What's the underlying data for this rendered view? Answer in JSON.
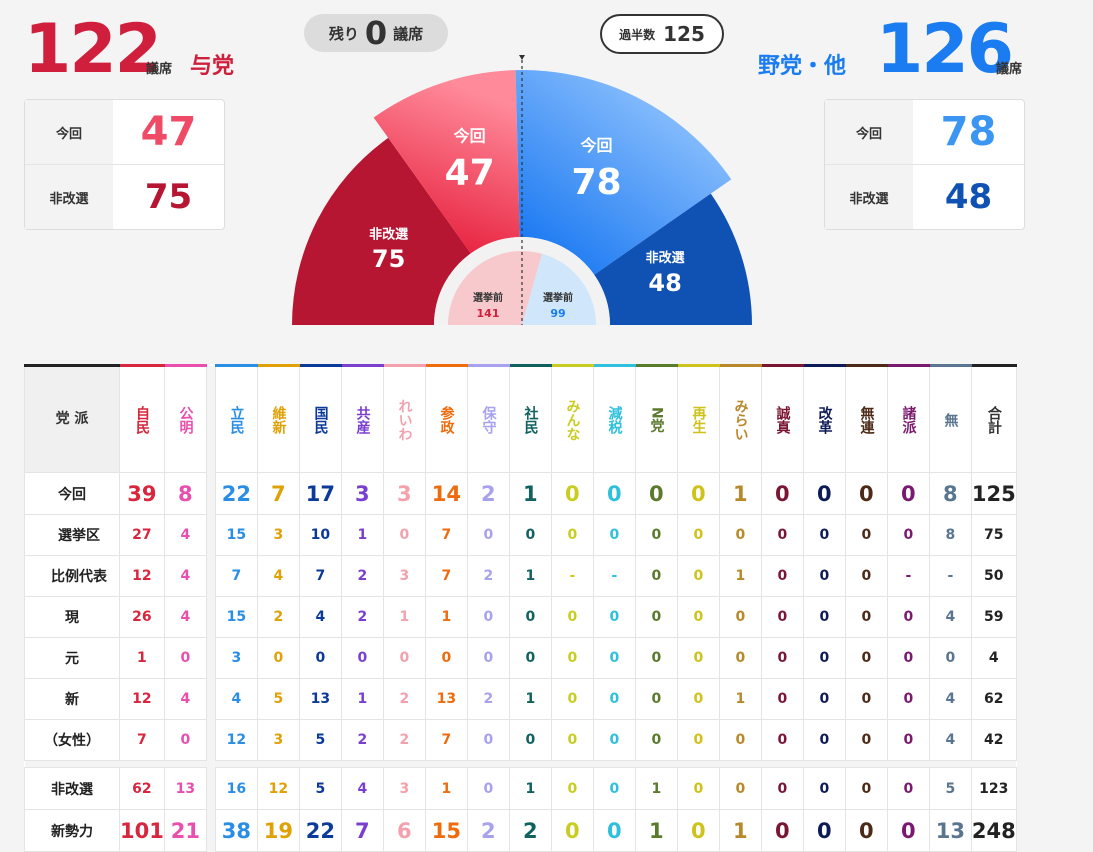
{
  "ruling": {
    "total": "122",
    "unit": "議席",
    "name": "与党",
    "current_label": "今回",
    "current": "47",
    "noncontest_label": "非改選",
    "noncontest": "75"
  },
  "opposition": {
    "total": "126",
    "unit": "議席",
    "name": "野党・他",
    "current_label": "今回",
    "current": "78",
    "noncontest_label": "非改選",
    "noncontest": "48"
  },
  "remaining": {
    "prefix": "残り",
    "value": "0",
    "suffix": "議席"
  },
  "majority": {
    "label": "過半数",
    "value": "125"
  },
  "colors": {
    "ruling_dark": "#b71633",
    "ruling_light": "#e8213f",
    "opp_light": "#1a7cf0",
    "opp_dark": "#1052b4"
  },
  "chart_data": {
    "type": "pie",
    "subtype": "semicircle",
    "series": [
      {
        "name": "非改選",
        "value": 75,
        "color": "#b71633"
      },
      {
        "name": "今回",
        "value": 47,
        "color": "#e8213f"
      },
      {
        "name": "今回",
        "value": 78,
        "color": "#1a7cf0"
      },
      {
        "name": "非改選",
        "value": 48,
        "color": "#1052b4"
      }
    ],
    "inner_pie": [
      {
        "name": "選挙前",
        "value": 141,
        "color": "#f7c9cd"
      },
      {
        "name": "選挙前",
        "value": 99,
        "color": "#cfe6fb"
      }
    ],
    "total": 248,
    "majority": 125
  },
  "table": {
    "header_label": "党 派",
    "parties": [
      {
        "name": "自民",
        "color": "#d7263d"
      },
      {
        "name": "公明",
        "color": "#e84fae"
      },
      {
        "name": "立民",
        "color": "#2b8ee5"
      },
      {
        "name": "維新",
        "color": "#e0a106"
      },
      {
        "name": "国民",
        "color": "#0c3a99"
      },
      {
        "name": "共産",
        "color": "#7b3fd0"
      },
      {
        "name": "れいわ",
        "color": "#f3a2ad"
      },
      {
        "name": "参政",
        "color": "#ee6b0e"
      },
      {
        "name": "保守",
        "color": "#a8a2ee"
      },
      {
        "name": "社民",
        "color": "#11625f"
      },
      {
        "name": "みんな",
        "color": "#c9cd21"
      },
      {
        "name": "減税",
        "color": "#2ec0dc"
      },
      {
        "name": "N党",
        "color": "#5a7a2c"
      },
      {
        "name": "再生",
        "color": "#cfc21a"
      },
      {
        "name": "みらい",
        "color": "#b8892a"
      },
      {
        "name": "誠真",
        "color": "#7a1634"
      },
      {
        "name": "改革",
        "color": "#0d1b56"
      },
      {
        "name": "無連",
        "color": "#4d2a18"
      },
      {
        "name": "諸派",
        "color": "#7a1a6e"
      },
      {
        "name": "無",
        "color": "#5a7590"
      }
    ],
    "total_label": "合計",
    "rows": [
      {
        "label": "今回",
        "size": "big",
        "values": [
          "39",
          "8",
          "22",
          "7",
          "17",
          "3",
          "3",
          "14",
          "2",
          "1",
          "0",
          "0",
          "0",
          "0",
          "1",
          "0",
          "0",
          "0",
          "0",
          "8"
        ],
        "total": "125"
      },
      {
        "label": "選挙区",
        "size": "small",
        "sub": true,
        "values": [
          "27",
          "4",
          "15",
          "3",
          "10",
          "1",
          "0",
          "7",
          "0",
          "0",
          "0",
          "0",
          "0",
          "0",
          "0",
          "0",
          "0",
          "0",
          "0",
          "8"
        ],
        "total": "75"
      },
      {
        "label": "比例代表",
        "size": "small",
        "sub": true,
        "values": [
          "12",
          "4",
          "7",
          "4",
          "7",
          "2",
          "3",
          "7",
          "2",
          "1",
          "-",
          "-",
          "0",
          "0",
          "1",
          "0",
          "0",
          "0",
          "-",
          "-"
        ],
        "total": "50"
      },
      {
        "label": "現",
        "size": "small",
        "values": [
          "26",
          "4",
          "15",
          "2",
          "4",
          "2",
          "1",
          "1",
          "0",
          "0",
          "0",
          "0",
          "0",
          "0",
          "0",
          "0",
          "0",
          "0",
          "0",
          "4"
        ],
        "total": "59"
      },
      {
        "label": "元",
        "size": "small",
        "values": [
          "1",
          "0",
          "3",
          "0",
          "0",
          "0",
          "0",
          "0",
          "0",
          "0",
          "0",
          "0",
          "0",
          "0",
          "0",
          "0",
          "0",
          "0",
          "0",
          "0"
        ],
        "total": "4"
      },
      {
        "label": "新",
        "size": "small",
        "values": [
          "12",
          "4",
          "4",
          "5",
          "13",
          "1",
          "2",
          "13",
          "2",
          "1",
          "0",
          "0",
          "0",
          "0",
          "1",
          "0",
          "0",
          "0",
          "0",
          "4"
        ],
        "total": "62"
      },
      {
        "label": "（女性）",
        "size": "small",
        "values": [
          "7",
          "0",
          "12",
          "3",
          "5",
          "2",
          "2",
          "7",
          "0",
          "0",
          "0",
          "0",
          "0",
          "0",
          "0",
          "0",
          "0",
          "0",
          "0",
          "4"
        ],
        "total": "42"
      },
      {
        "label": "非改選",
        "size": "small",
        "values": [
          "62",
          "13",
          "16",
          "12",
          "5",
          "4",
          "3",
          "1",
          "0",
          "1",
          "0",
          "0",
          "1",
          "0",
          "0",
          "0",
          "0",
          "0",
          "0",
          "5"
        ],
        "total": "123"
      },
      {
        "label": "新勢力",
        "size": "big",
        "values": [
          "101",
          "21",
          "38",
          "19",
          "22",
          "7",
          "6",
          "15",
          "2",
          "2",
          "0",
          "0",
          "1",
          "0",
          "1",
          "0",
          "0",
          "0",
          "0",
          "13"
        ],
        "total": "248"
      }
    ]
  }
}
